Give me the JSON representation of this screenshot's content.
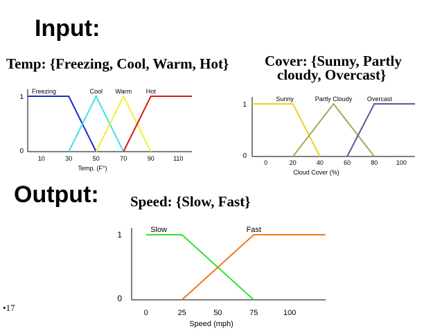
{
  "headings": {
    "input": "Input:",
    "output": "Output:",
    "temp_set": "Temp: {Freezing, Cool, Warm, Hot}",
    "cover_set_line1": "Cover: {Sunny, Partly",
    "cover_set_line2": "cloudy, Overcast}",
    "speed_set": "Speed: {Slow, Fast}"
  },
  "slide_number": "•17",
  "colors": {
    "freezing": "#1a2bc8",
    "cool": "#3fe0e8",
    "warm": "#f2f03a",
    "hot": "#d81818",
    "sunny": "#f0d020",
    "partly_cloudy": "#a6a856",
    "overcast": "#5a5aa0",
    "slow": "#33e033",
    "fast": "#f07a1a"
  },
  "chart_data": [
    {
      "type": "line",
      "xlabel": "Temp. (F°)",
      "ylabel": "",
      "xlim": [
        0,
        120
      ],
      "ylim": [
        0,
        1
      ],
      "x_ticks": [
        "10",
        "30",
        "50",
        "70",
        "90",
        "110"
      ],
      "y_ticks": [
        "0",
        "1"
      ],
      "series": [
        {
          "name": "Freezing",
          "points": [
            [
              0,
              1
            ],
            [
              30,
              1
            ],
            [
              50,
              0
            ]
          ]
        },
        {
          "name": "Cool",
          "points": [
            [
              30,
              0
            ],
            [
              50,
              1
            ],
            [
              70,
              0
            ]
          ]
        },
        {
          "name": "Warm",
          "points": [
            [
              50,
              0
            ],
            [
              70,
              1
            ],
            [
              90,
              0
            ]
          ]
        },
        {
          "name": "Hot",
          "points": [
            [
              70,
              0
            ],
            [
              90,
              1
            ],
            [
              120,
              1
            ]
          ]
        }
      ]
    },
    {
      "type": "line",
      "xlabel": "Cloud Cover (%)",
      "ylabel": "",
      "xlim": [
        -10,
        110
      ],
      "ylim": [
        0,
        1
      ],
      "x_ticks": [
        "0",
        "20",
        "40",
        "60",
        "80",
        "100"
      ],
      "y_ticks": [
        "0",
        "1"
      ],
      "series": [
        {
          "name": "Sunny",
          "points": [
            [
              -10,
              1
            ],
            [
              20,
              1
            ],
            [
              40,
              0
            ]
          ]
        },
        {
          "name": "Partly Cloudy",
          "points": [
            [
              20,
              0
            ],
            [
              50,
              1
            ],
            [
              80,
              0
            ]
          ]
        },
        {
          "name": "Overcast",
          "points": [
            [
              60,
              0
            ],
            [
              80,
              1
            ],
            [
              110,
              1
            ]
          ]
        }
      ]
    },
    {
      "type": "line",
      "xlabel": "Speed (mph)",
      "ylabel": "",
      "xlim": [
        -10,
        125
      ],
      "ylim": [
        0,
        1
      ],
      "x_ticks": [
        "0",
        "25",
        "50",
        "75",
        "100"
      ],
      "y_ticks": [
        "0",
        "1"
      ],
      "series": [
        {
          "name": "Slow",
          "points": [
            [
              0,
              1
            ],
            [
              25,
              1
            ],
            [
              75,
              0
            ]
          ]
        },
        {
          "name": "Fast",
          "points": [
            [
              25,
              0
            ],
            [
              75,
              1
            ],
            [
              125,
              1
            ]
          ]
        }
      ]
    }
  ]
}
